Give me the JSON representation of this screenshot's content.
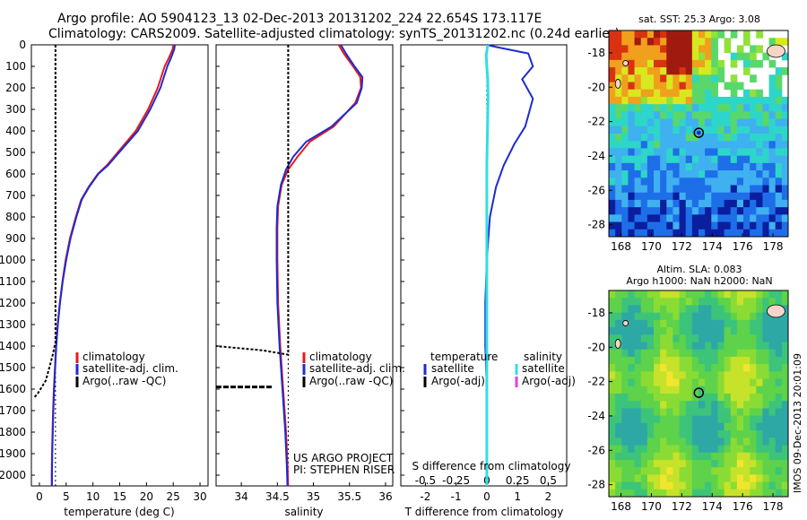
{
  "header": {
    "line1": "Argo profile: AO 5904123_13 02-Dec-2013 20131202_224 22.654S 173.117E",
    "line2": "Climatology: CARS2009. Satellite-adjusted climatology: synTS_20131202.nc (0.24d earlier)"
  },
  "side_label": "IMOS 09-Dec-2013 20:01:09",
  "credit": {
    "line1": "US ARGO PROJECT",
    "line2": "PI: STEPHEN RISER"
  },
  "colors": {
    "climatology": "#e41a1c",
    "satellite": "#1f2bd0",
    "argo": "#000000",
    "satellite_s": "#33dde0",
    "argo_s": "#e040e0"
  },
  "chart_data": [
    {
      "id": "temperature",
      "type": "line",
      "xlabel": "temperature (deg C)",
      "ylabel": "",
      "xlim": [
        -1.5,
        31.5
      ],
      "ylim": [
        2050,
        0
      ],
      "xticks": [
        0,
        5,
        10,
        15,
        20,
        25,
        30
      ],
      "yticks": [
        0,
        100,
        200,
        300,
        400,
        500,
        600,
        700,
        800,
        900,
        1000,
        1100,
        1200,
        1300,
        1400,
        1500,
        1600,
        1700,
        1800,
        1900,
        2000
      ],
      "legend": [
        "climatology",
        "satellite-adj. clim.",
        "Argo(..raw -QC)"
      ],
      "series": [
        {
          "name": "climatology",
          "points": [
            [
              25.0,
              0
            ],
            [
              24.9,
              20
            ],
            [
              24.2,
              60
            ],
            [
              23.4,
              100
            ],
            [
              22.1,
              200
            ],
            [
              20.3,
              300
            ],
            [
              18.0,
              400
            ],
            [
              15.3,
              480
            ],
            [
              12.6,
              560
            ],
            [
              10.9,
              600
            ],
            [
              9.2,
              660
            ],
            [
              7.8,
              720
            ],
            [
              6.8,
              800
            ],
            [
              5.7,
              900
            ],
            [
              4.9,
              1000
            ],
            [
              4.3,
              1100
            ],
            [
              3.8,
              1200
            ],
            [
              3.4,
              1300
            ],
            [
              3.1,
              1400
            ],
            [
              2.9,
              1500
            ],
            [
              2.7,
              1600
            ],
            [
              2.55,
              1700
            ],
            [
              2.45,
              1800
            ],
            [
              2.35,
              1900
            ],
            [
              2.3,
              2000
            ],
            [
              2.3,
              2050
            ]
          ]
        },
        {
          "name": "satellite-adj. clim.",
          "points": [
            [
              25.3,
              0
            ],
            [
              25.2,
              20
            ],
            [
              24.6,
              60
            ],
            [
              23.9,
              100
            ],
            [
              22.6,
              200
            ],
            [
              20.7,
              300
            ],
            [
              18.4,
              400
            ],
            [
              15.6,
              480
            ],
            [
              12.8,
              560
            ],
            [
              11.0,
              600
            ],
            [
              9.3,
              660
            ],
            [
              7.9,
              720
            ],
            [
              6.9,
              800
            ],
            [
              5.8,
              900
            ],
            [
              5.0,
              1000
            ],
            [
              4.35,
              1100
            ],
            [
              3.85,
              1200
            ],
            [
              3.45,
              1300
            ],
            [
              3.15,
              1400
            ],
            [
              2.95,
              1500
            ],
            [
              2.75,
              1600
            ],
            [
              2.6,
              1700
            ],
            [
              2.5,
              1800
            ],
            [
              2.4,
              1900
            ],
            [
              2.35,
              2000
            ],
            [
              2.35,
              2050
            ]
          ]
        },
        {
          "name": "Argo(..raw -QC)",
          "points": [
            [
              3.0,
              0
            ],
            [
              3.0,
              1380
            ],
            [
              2.5,
              1440
            ],
            [
              1.2,
              1560
            ],
            [
              -0.3,
              1620
            ],
            [
              -1.0,
              1640
            ]
          ]
        }
      ]
    },
    {
      "id": "salinity",
      "type": "line",
      "xlabel": "salinity",
      "ylabel": "",
      "xlim": [
        33.65,
        36.1
      ],
      "ylim": [
        2050,
        0
      ],
      "xticks": [
        34,
        34.5,
        35,
        35.5,
        36
      ],
      "legend": [
        "climatology",
        "satellite-adj. clim.",
        "Argo(..raw -QC)"
      ],
      "series": [
        {
          "name": "climatology",
          "points": [
            [
              35.35,
              0
            ],
            [
              35.42,
              40
            ],
            [
              35.55,
              100
            ],
            [
              35.65,
              150
            ],
            [
              35.66,
              200
            ],
            [
              35.58,
              270
            ],
            [
              35.28,
              380
            ],
            [
              34.95,
              450
            ],
            [
              34.78,
              520
            ],
            [
              34.65,
              580
            ],
            [
              34.56,
              650
            ],
            [
              34.51,
              750
            ],
            [
              34.5,
              850
            ],
            [
              34.5,
              1000
            ],
            [
              34.51,
              1200
            ],
            [
              34.54,
              1400
            ],
            [
              34.58,
              1600
            ],
            [
              34.62,
              1800
            ],
            [
              34.64,
              1950
            ],
            [
              34.65,
              2050
            ]
          ]
        },
        {
          "name": "satellite-adj. clim.",
          "points": [
            [
              35.38,
              0
            ],
            [
              35.45,
              40
            ],
            [
              35.57,
              100
            ],
            [
              35.68,
              150
            ],
            [
              35.67,
              200
            ],
            [
              35.6,
              270
            ],
            [
              35.25,
              380
            ],
            [
              34.9,
              450
            ],
            [
              34.72,
              520
            ],
            [
              34.62,
              580
            ],
            [
              34.55,
              650
            ],
            [
              34.5,
              750
            ],
            [
              34.49,
              850
            ],
            [
              34.49,
              1000
            ],
            [
              34.5,
              1200
            ],
            [
              34.53,
              1400
            ],
            [
              34.57,
              1600
            ],
            [
              34.61,
              1800
            ],
            [
              34.63,
              1950
            ],
            [
              34.64,
              2050
            ]
          ]
        },
        {
          "name": "Argo(..raw -QC)",
          "points": [
            [
              34.65,
              0
            ],
            [
              34.65,
              1440
            ],
            [
              34.3,
              1420
            ],
            [
              33.65,
              1400
            ]
          ]
        }
      ]
    },
    {
      "id": "differences",
      "type": "line",
      "xlabel": "T difference from climatology",
      "xlabel_top": "S difference from climatology",
      "xlim": [
        -2.8,
        2.6
      ],
      "ylim": [
        2050,
        0
      ],
      "xticks": [
        -2,
        -1,
        0,
        1,
        2
      ],
      "xticks_top": [
        -0.5,
        -0.25,
        0,
        0.25,
        0.5
      ],
      "legend_headers": [
        "temperature",
        "salinity"
      ],
      "legend": [
        "satellite",
        "Argo(-adj)",
        "satellite",
        "Argo(-adj)"
      ],
      "series": [
        {
          "name": "temperature satellite",
          "points": [
            [
              0.0,
              0
            ],
            [
              0.3,
              10
            ],
            [
              1.35,
              40
            ],
            [
              1.5,
              100
            ],
            [
              1.15,
              160
            ],
            [
              1.5,
              250
            ],
            [
              1.25,
              380
            ],
            [
              0.9,
              460
            ],
            [
              0.55,
              560
            ],
            [
              0.3,
              660
            ],
            [
              0.1,
              800
            ],
            [
              0.0,
              1000
            ],
            [
              -0.05,
              1200
            ],
            [
              -0.05,
              1400
            ],
            [
              0.0,
              1600
            ],
            [
              0.0,
              2050
            ]
          ]
        },
        {
          "name": "salinity satellite",
          "points": [
            [
              0.03,
              0
            ],
            [
              -0.02,
              50
            ],
            [
              0.0,
              100
            ],
            [
              0.03,
              160
            ],
            [
              0.04,
              250
            ],
            [
              0.02,
              400
            ],
            [
              0.0,
              560
            ],
            [
              0.0,
              800
            ],
            [
              0.0,
              2050
            ]
          ]
        }
      ]
    }
  ],
  "maps": [
    {
      "id": "sst_map",
      "title": "sat. SST: 25.3 Argo: 3.08",
      "lon_ticks": [
        168,
        170,
        172,
        174,
        176,
        178
      ],
      "lat_ticks": [
        -18,
        -20,
        -22,
        -24,
        -26,
        -28
      ],
      "lon_range": [
        167.2,
        179.0
      ],
      "lat_range": [
        -28.7,
        -16.7
      ],
      "argo_position": {
        "lon": 173.117,
        "lat": -22.654
      },
      "colors": [
        "#0a1e9e",
        "#1e6ee8",
        "#3fb0f0",
        "#2dd6c8",
        "#58d86a",
        "#8fe23a",
        "#d8e81e",
        "#f0a01c",
        "#d83212",
        "#a01a10"
      ]
    },
    {
      "id": "sla_map",
      "title": "Altim. SLA: 0.083",
      "subtitle": "Argo h1000: NaN h2000: NaN",
      "lon_ticks": [
        168,
        170,
        172,
        174,
        176,
        178
      ],
      "lat_ticks": [
        -18,
        -20,
        -22,
        -24,
        -26,
        -28
      ],
      "lon_range": [
        167.2,
        179.0
      ],
      "lat_range": [
        -28.7,
        -16.7
      ],
      "argo_position": {
        "lon": 173.117,
        "lat": -22.654
      },
      "colors": [
        "#2ea8a4",
        "#3cc47a",
        "#5ed24a",
        "#8adc34",
        "#c6e22a",
        "#f0e62e"
      ]
    }
  ]
}
